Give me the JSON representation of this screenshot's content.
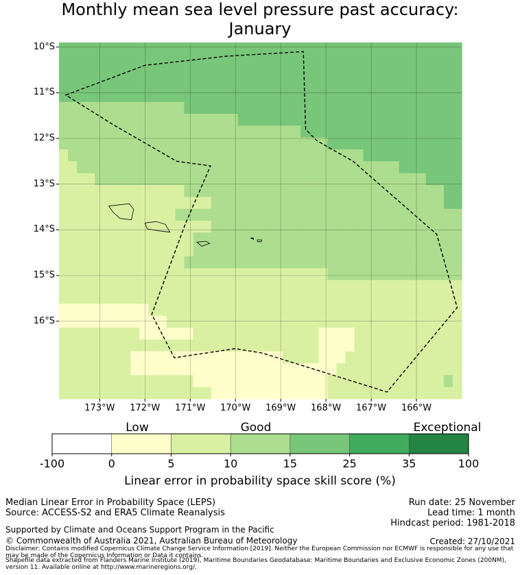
{
  "title": {
    "line1": "Monthly mean sea level pressure past accuracy:",
    "line2": "January"
  },
  "map": {
    "lat_labels": [
      "10°S",
      "11°S",
      "12°S",
      "13°S",
      "14°S",
      "15°S",
      "16°S"
    ],
    "lon_labels": [
      "173°W",
      "172°W",
      "171°W",
      "170°W",
      "169°W",
      "168°W",
      "167°W",
      "166°W"
    ],
    "lat_range": [
      -17.7,
      -9.9
    ],
    "lon_range": [
      -173.9,
      -165.0
    ],
    "boundary_polygon": [
      [
        -173.75,
        -11.05
      ],
      [
        -172.0,
        -10.4
      ],
      [
        -170.2,
        -10.2
      ],
      [
        -168.5,
        -10.1
      ],
      [
        -168.45,
        -11.8
      ],
      [
        -168.2,
        -12.05
      ],
      [
        -167.4,
        -12.5
      ],
      [
        -165.55,
        -14.1
      ],
      [
        -165.1,
        -15.7
      ],
      [
        -166.65,
        -17.55
      ],
      [
        -169.4,
        -16.7
      ],
      [
        -170.0,
        -16.6
      ],
      [
        -171.35,
        -16.8
      ],
      [
        -171.85,
        -15.85
      ],
      [
        -171.1,
        -13.85
      ],
      [
        -170.55,
        -12.6
      ],
      [
        -171.3,
        -12.5
      ],
      [
        -172.7,
        -11.7
      ]
    ],
    "islands": [
      {
        "name": "Savai'i",
        "polygon": [
          [
            -172.8,
            -13.48
          ],
          [
            -172.55,
            -13.45
          ],
          [
            -172.35,
            -13.43
          ],
          [
            -172.25,
            -13.55
          ],
          [
            -172.3,
            -13.78
          ],
          [
            -172.55,
            -13.75
          ],
          [
            -172.7,
            -13.62
          ]
        ]
      },
      {
        "name": "Upolu",
        "polygon": [
          [
            -172.0,
            -13.85
          ],
          [
            -171.75,
            -13.82
          ],
          [
            -171.55,
            -13.88
          ],
          [
            -171.45,
            -14.05
          ],
          [
            -171.7,
            -14.02
          ],
          [
            -171.95,
            -13.98
          ]
        ]
      },
      {
        "name": "Tutuila",
        "polygon": [
          [
            -170.85,
            -14.27
          ],
          [
            -170.65,
            -14.25
          ],
          [
            -170.57,
            -14.3
          ],
          [
            -170.75,
            -14.36
          ]
        ]
      },
      {
        "name": "Ofu-Olosega",
        "polygon": [
          [
            -169.67,
            -14.18
          ],
          [
            -169.6,
            -14.18
          ],
          [
            -169.6,
            -14.21
          ]
        ]
      },
      {
        "name": "Ta'u",
        "polygon": [
          [
            -169.52,
            -14.22
          ],
          [
            -169.42,
            -14.22
          ],
          [
            -169.43,
            -14.26
          ],
          [
            -169.51,
            -14.26
          ]
        ]
      }
    ],
    "color_grid": [
      "DDDDDDDDDDDDDDDDDDDDDDDDDDDDDDDDDDDDDDDDDDDDD",
      "DDDDDDDDDDDDDDDDDDDDDDDDDDDDDDDDDDDDDDDDDDDDD",
      "DDDDDDDDDDDDDDDDDDDDDDDDDDDDDDDDDDDDDDDDDDDDD",
      "DDDDDDDDDDDDDDDDDDDDDDDDDDDDDDDDDDDDDDDDDDDDD",
      "DDDDDDDDDDDDDDDDDDDDDDDDDDDDDDDDDDDDDDDDDDDDD",
      "CCCCCCCCCCCCCCDDDDDDDDDDDDDDDDDDDDDDDDDDDDDDD",
      "CCCCCCCCCCCCCCCCCCCCDDDDDDDDDDDDDDDDDDDDDDDDD",
      "CCCCCCCCCCCCCCCCCCCCCCCCCCCDDDDDDDDDDDDDDDDDD",
      "CCCCCCCCCCCCCCCCCCCCCCCCCCCCCCDDDDDDDDDDDDDDD",
      "BCCCCCCCCCCCCCCCCCCCCCCCCCCCCCCCCCDDDDDDDDDDD",
      "BBCCCCCCCCCCCCCCCCCCCCCCCCCCCCCCCCCCCCDDDDDDD",
      "BBBBCCCCCCCCCCCCCCCCCCCCCCCCCCCCCCCCCCCCCDDDD",
      "BBBBBBBBBBBBBBCCCCCCCCCCCCCCCCCCCCCCCCCCCCCDD",
      "BBBBBBBBBBBBBBBBBCCCCCCCCCCCCCCCCCCCCCCCCCCDD",
      "BBBBBBBBBBBBBCCCCCCCCCCCCCCCCCCCCCCCCCCCCCCCC",
      "BBBBBBBBBBBBBBBBBCCCCCCCCCCCCCCCCCCCCCCCCCCCC",
      "BBBBBBBBBBBBBBBCCCCCCCCCCCCCCCCCCCCCCCCCCCCCC",
      "BBBBBBBBBBBBBBBCCCCCCCCCCCCCCCCCCCCCCCCCCCCCC",
      "BBBBBBBBBBBBBBCCCCCCCCCCCCCCCCCCCCCCCCCCCCCCC",
      "BBBBBBBBBBBBBBBBBBBBBBBBBBBBBBCCCCCCCCCCCCCCC",
      "BBBBBBBBBBBBBBBBBBBBBBBBBBBBBBBBBBBBBBBBBBBBB",
      "BBBBBBBBBBBBBBBBBBBBBBBBBBBBBBBBBBBBBBBBBBBBB",
      "AAAAAAAAAABBBBBBBBBBBBBBBBBBBBBBBBBBBBBBBBBBB",
      "AAAAAAAAAAAABBBBBBBBBBBBBBBBBBBBBBBBBBBBBBBBB",
      "BBBBBBBBBAAAAAABBBBBBBBBBBBBBAAAABBBBBBBBBBBB",
      "BBBBBBBBBBBBBBBBBBBBBBBBBBBBBAAAABBBBBBBBBBBB",
      "BBBBBBBBAAAAAAAAAAAAAAAAABBBBAAABBBBBBBBBBBBB",
      "BBBBBBBBAAAAAAAAAAAAAAAAAAAAAAABBBBBBBBBBBBBB",
      "BBBBBBBBBBBBBBBAAAAAAAAAAAAAAABBBBBBBBBBBBBCB",
      "BBBBBBBBBBBBBBBBBAAAAAAAAAAAAABBBBBBBBBBBBBBB"
    ]
  },
  "colorbar": {
    "categories": [
      "Low",
      "Good",
      "Exceptional"
    ],
    "ticks": [
      "-100",
      "0",
      "5",
      "10",
      "15",
      "25",
      "35",
      "100"
    ],
    "colors": [
      "#ffffff",
      "#ffffcc",
      "#d9f0a3",
      "#addd8e",
      "#78c679",
      "#41ab5d",
      "#238443"
    ],
    "label": "Linear error in probability space skill score (%)"
  },
  "footer": {
    "left1": "Median Linear Error in Probability Space (LEPS)",
    "left2": "Source: ACCESS-S2 and ERA5 Climate Reanalysis",
    "right1": "Run date: 25 November",
    "right2": "Lead time: 1 month",
    "right3": "Hindcast period: 1981-2018",
    "supported": "Supported by Climate and Oceans Support Program in the Pacific",
    "copyright": "© Commonwealth of Australia 2021, Australian Bureau of Meteorology",
    "created": "Created: 27/10/2021",
    "disclaimer": "Disclaimer: Contains modified Copernicus Climate Change Service Information [2019]. Neither the European Commission nor ECMWF is responsible for any use that may be made of the Copernicus Information or Data it contains.",
    "shapefile": "Shapefile data extracted from Flanders Marine Institute (2019), Maritime Boundaries Geodatabase: Maritime Boundaries and Exclusive Economic Zones (200NM), version 11. Available online at http://www.marineregions.org/."
  }
}
